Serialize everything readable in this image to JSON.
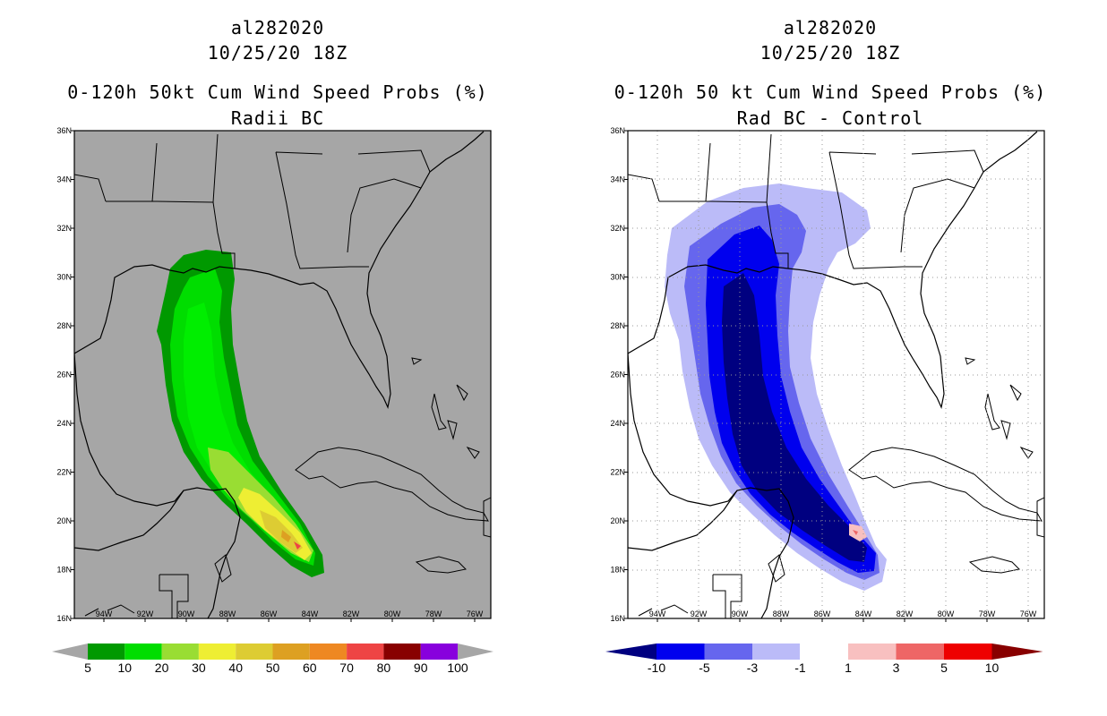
{
  "left_panel": {
    "storm_id": "al282020",
    "datetime": "10/25/20 18Z",
    "title": "0-120h 50kt Cum Wind Speed Probs (%)",
    "subtitle": "Radii BC",
    "lat_labels": [
      "36N",
      "34N",
      "32N",
      "30N",
      "28N",
      "26N",
      "24N",
      "22N",
      "20N",
      "18N",
      "16N"
    ],
    "lon_labels": [
      "94W",
      "92W",
      "90W",
      "88W",
      "86W",
      "84W",
      "82W",
      "80W",
      "78W",
      "76W"
    ],
    "colorbar": {
      "labels": [
        "5",
        "10",
        "20",
        "30",
        "40",
        "50",
        "60",
        "70",
        "80",
        "90",
        "100"
      ],
      "colors": [
        "#009900",
        "#00dd00",
        "#99dd33",
        "#eeee33",
        "#ddcc33",
        "#dda022",
        "#ee8822",
        "#ee4444",
        "#880000",
        "#8800dd"
      ]
    }
  },
  "right_panel": {
    "storm_id": "al282020",
    "datetime": "10/25/20 18Z",
    "title": "0-120h 50 kt Cum Wind Speed Probs (%)",
    "subtitle": "Rad BC - Control",
    "lat_labels": [
      "36N",
      "34N",
      "32N",
      "30N",
      "28N",
      "26N",
      "24N",
      "22N",
      "20N",
      "18N",
      "16N"
    ],
    "lon_labels": [
      "94W",
      "92W",
      "90W",
      "88W",
      "86W",
      "84W",
      "82W",
      "80W",
      "78W",
      "76W"
    ],
    "colorbar": {
      "labels": [
        "-10",
        "-5",
        "-3",
        "-1",
        "1",
        "3",
        "5",
        "10"
      ],
      "colors": [
        "#000080",
        "#0000ee",
        "#6666ee",
        "#bbbbf8",
        "#ffffff",
        "#f8c0c0",
        "#ee6666",
        "#ee0000",
        "#880000"
      ]
    }
  }
}
